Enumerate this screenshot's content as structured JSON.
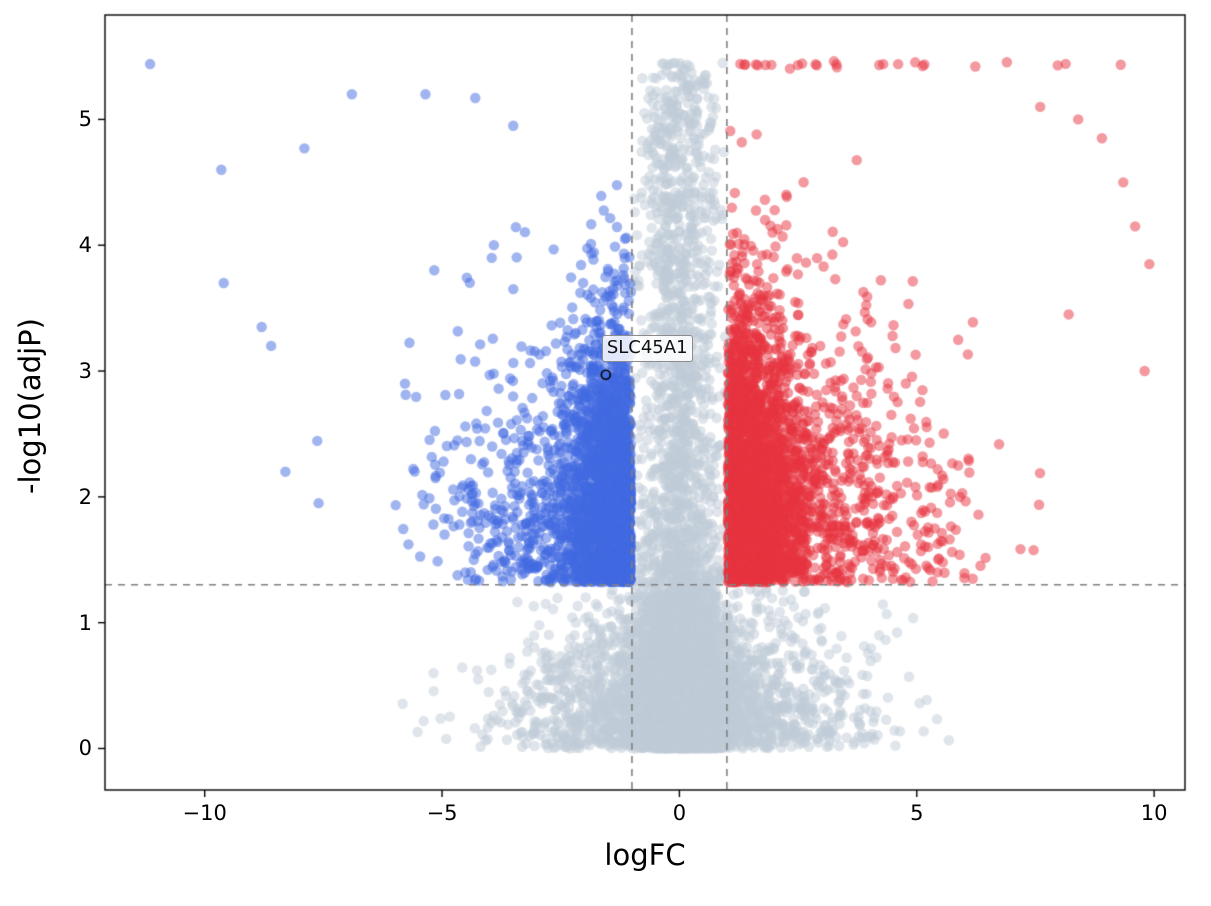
{
  "figure": {
    "background": "#ffffff"
  },
  "chart_data": {
    "type": "scatter",
    "subtype": "volcano-plot",
    "title": "",
    "xlabel": "logFC",
    "ylabel": "-log10(adjP)",
    "xlim": [
      -12.1,
      10.65
    ],
    "ylim": [
      -0.33,
      5.83
    ],
    "xticks": [
      {
        "value": -10,
        "label": "−10"
      },
      {
        "value": -5,
        "label": "−5"
      },
      {
        "value": 0,
        "label": "0"
      },
      {
        "value": 5,
        "label": "5"
      },
      {
        "value": 10,
        "label": "10"
      }
    ],
    "yticks": [
      {
        "value": 0,
        "label": "0"
      },
      {
        "value": 1,
        "label": "1"
      },
      {
        "value": 2,
        "label": "2"
      },
      {
        "value": 3,
        "label": "3"
      },
      {
        "value": 4,
        "label": "4"
      },
      {
        "value": 5,
        "label": "5"
      }
    ],
    "grid": false,
    "legend": null,
    "thresholds": {
      "logfc_low": -1,
      "logfc_high": 1,
      "neg_log10_adjp": 1.301
    },
    "threshold_style": {
      "color": "#808080",
      "dash": [
        7,
        6
      ],
      "width": 1.6
    },
    "annotation": {
      "label": "SLC45A1",
      "x": -1.55,
      "y": 2.97,
      "marker": {
        "shape": "open-circle",
        "color": "#000000",
        "radius": 4.5
      }
    },
    "marker": {
      "radius": 5.2,
      "alpha": 0.5
    },
    "seed": 42,
    "series": [
      {
        "name": "not-significant",
        "color": "#bfccd8",
        "count_core": 3500,
        "count_column": 2200,
        "count_wide": 2000
      },
      {
        "name": "downregulated",
        "color": "#4169e1",
        "count": 3000,
        "outliers": [
          [
            -11.15,
            5.44
          ],
          [
            -9.65,
            4.6
          ],
          [
            -9.6,
            3.7
          ],
          [
            -8.8,
            3.35
          ],
          [
            -8.6,
            3.2
          ],
          [
            -7.9,
            4.77
          ],
          [
            -6.9,
            5.2
          ],
          [
            -5.35,
            5.2
          ],
          [
            -4.3,
            5.17
          ],
          [
            -3.5,
            4.95
          ],
          [
            -8.3,
            2.2
          ],
          [
            -7.6,
            1.95
          ]
        ]
      },
      {
        "name": "upregulated",
        "color": "#e8343f",
        "count": 3600,
        "cap_row_count": 26,
        "cap_y": 5.44,
        "outliers": [
          [
            9.9,
            3.85
          ],
          [
            9.8,
            3.0
          ],
          [
            9.35,
            4.5
          ],
          [
            8.9,
            4.85
          ],
          [
            8.4,
            5.0
          ],
          [
            9.6,
            4.15
          ],
          [
            8.2,
            3.45
          ],
          [
            7.6,
            5.1
          ]
        ]
      }
    ]
  }
}
